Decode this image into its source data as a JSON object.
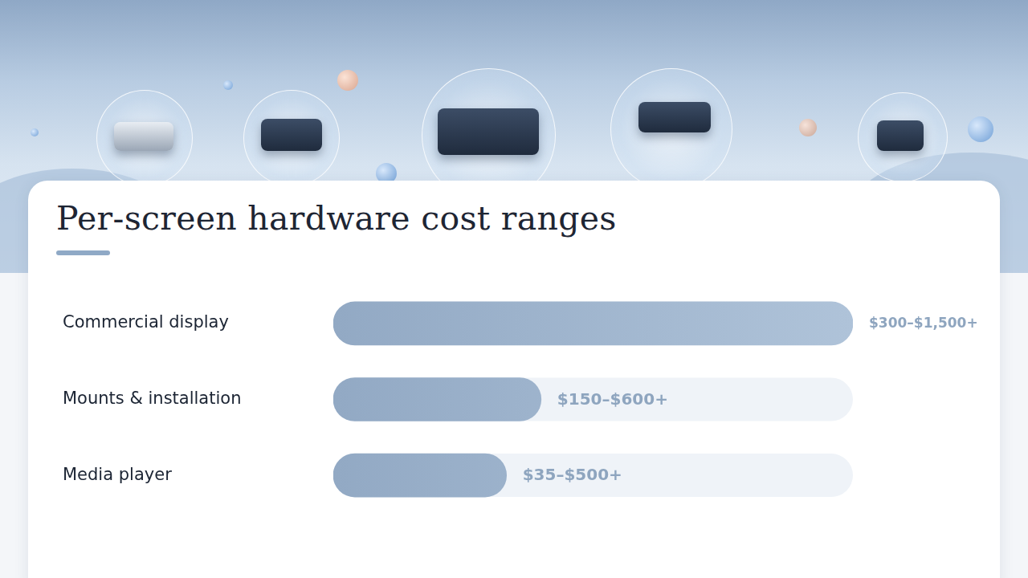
{
  "chart_data": {
    "type": "bar",
    "orientation": "horizontal",
    "title": "Per-screen hardware cost ranges",
    "categories": [
      "Commercial display",
      "Mounts & installation",
      "Media player"
    ],
    "values": [
      1500,
      600,
      500
    ],
    "value_labels": [
      "$300–$1,500+",
      "$150–$600+",
      "$35–$500+"
    ],
    "color": "#9bb4d0",
    "xlim": [
      0,
      1500
    ],
    "grid": false,
    "tick_labels": "y",
    "data_labels": true
  }
}
